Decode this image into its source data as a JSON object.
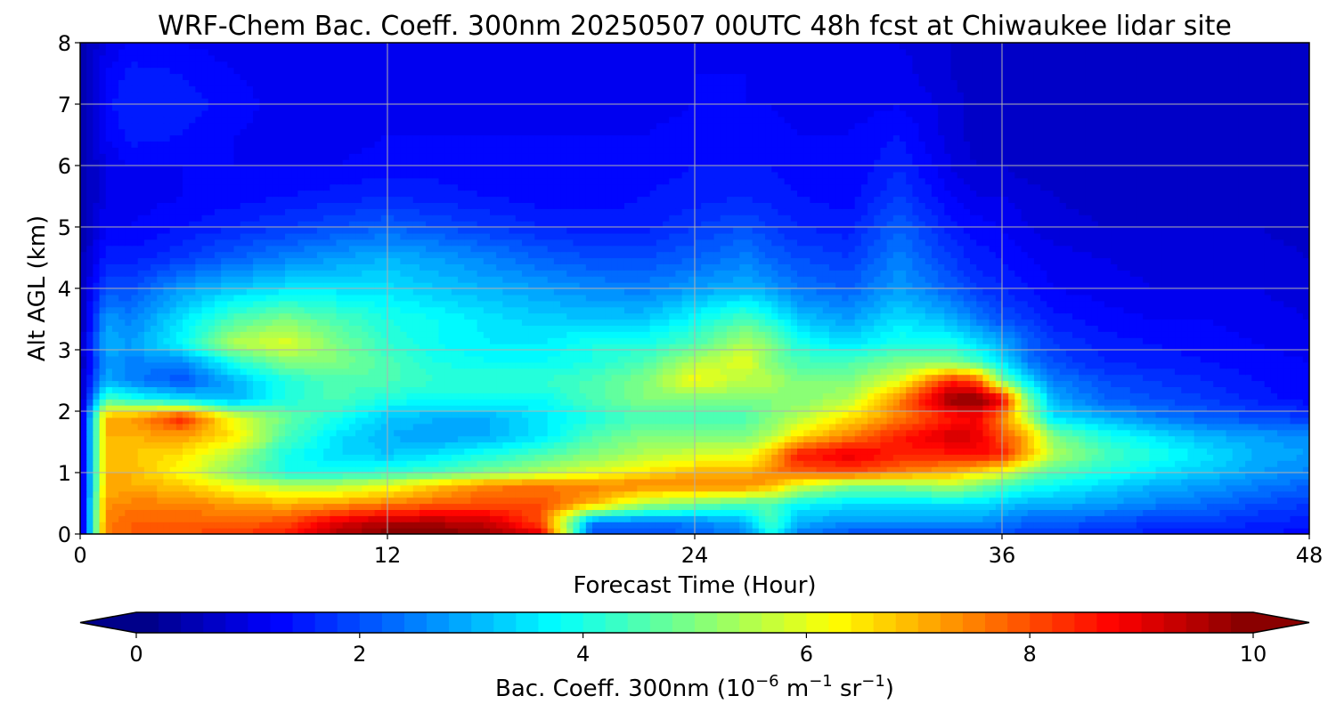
{
  "chart_data": {
    "type": "heatmap",
    "title": "WRF-Chem Bac. Coeff. 300nm  20250507 00UTC 48h fcst at Chiwaukee lidar site",
    "xlabel": "Forecast Time (Hour)",
    "ylabel": "Alt AGL (km)",
    "xlim": [
      0,
      48
    ],
    "ylim": [
      0,
      8
    ],
    "xticks": [
      0,
      12,
      24,
      36,
      48
    ],
    "yticks": [
      0,
      1,
      2,
      3,
      4,
      5,
      6,
      7,
      8
    ],
    "grid": true,
    "colormap": "jet",
    "colorbar": {
      "label_prefix": "Bac. Coeff. 300nm  (10",
      "label_exp1": "−6",
      "label_mid": " m",
      "label_exp2": "−1",
      "label_mid2": " sr",
      "label_exp3": "−1",
      "label_suffix": ")",
      "range": [
        0,
        10
      ],
      "ticks": [
        0,
        2,
        4,
        6,
        8,
        10
      ],
      "extend": "both",
      "orientation": "horizontal",
      "placement": "bottom"
    },
    "x_hours": [
      0,
      1,
      2,
      4,
      6,
      8,
      10,
      12,
      14,
      16,
      18,
      20,
      22,
      24,
      26,
      27,
      28,
      30,
      32,
      34,
      35,
      36,
      37,
      38,
      40,
      42,
      44,
      46,
      48
    ],
    "y_km": [
      0,
      0.2,
      0.5,
      0.8,
      1.0,
      1.3,
      1.6,
      1.9,
      2.2,
      2.5,
      2.8,
      3.1,
      3.5,
      4.0,
      4.5,
      5.0,
      5.5,
      6.0,
      6.5,
      7.0,
      7.5,
      8.0
    ],
    "values": [
      [
        0.5,
        7.5,
        7.8,
        8.0,
        8.2,
        8.5,
        9.5,
        10.0,
        10.0,
        9.8,
        9.0,
        2.0,
        2.0,
        2.2,
        2.5,
        4.0,
        2.5,
        2.0,
        2.0,
        2.0,
        2.0,
        2.0,
        1.8,
        1.8,
        1.6,
        1.5,
        1.5,
        1.4,
        1.3
      ],
      [
        0.5,
        7.5,
        7.8,
        7.8,
        7.8,
        8.0,
        9.0,
        9.5,
        9.5,
        9.2,
        8.0,
        2.5,
        2.4,
        2.5,
        3.0,
        4.5,
        3.0,
        2.7,
        2.7,
        2.8,
        2.7,
        2.5,
        2.2,
        2.2,
        2.0,
        1.8,
        1.8,
        1.6,
        1.5
      ],
      [
        0.5,
        7.3,
        7.5,
        7.5,
        7.2,
        7.0,
        7.2,
        7.5,
        7.8,
        8.0,
        8.0,
        7.0,
        5.5,
        5.0,
        4.5,
        4.5,
        3.8,
        3.5,
        3.5,
        3.5,
        3.5,
        3.3,
        3.0,
        3.0,
        2.8,
        2.5,
        2.3,
        2.0,
        1.8
      ],
      [
        0.5,
        7.0,
        7.0,
        6.8,
        6.0,
        5.5,
        5.5,
        6.0,
        6.8,
        7.5,
        7.6,
        7.5,
        7.5,
        7.5,
        7.5,
        7.0,
        6.0,
        5.0,
        5.0,
        5.5,
        5.0,
        4.5,
        4.0,
        3.8,
        3.4,
        3.0,
        2.8,
        2.5,
        2.2
      ],
      [
        0.5,
        7.0,
        7.0,
        6.2,
        5.0,
        4.0,
        4.0,
        4.2,
        4.5,
        5.0,
        5.5,
        6.0,
        6.5,
        7.0,
        7.0,
        7.5,
        7.8,
        8.0,
        7.5,
        7.0,
        6.5,
        6.0,
        5.0,
        4.5,
        4.0,
        3.5,
        3.2,
        2.8,
        2.5
      ],
      [
        0.5,
        7.0,
        6.8,
        6.5,
        5.5,
        4.0,
        3.4,
        3.2,
        3.5,
        4.0,
        4.5,
        5.0,
        5.5,
        5.8,
        6.0,
        7.0,
        8.5,
        9.0,
        8.5,
        8.5,
        8.7,
        8.5,
        7.0,
        5.5,
        4.5,
        4.0,
        3.5,
        3.0,
        2.8
      ],
      [
        0.5,
        7.0,
        7.0,
        7.2,
        6.5,
        4.5,
        3.5,
        3.0,
        2.8,
        3.0,
        3.5,
        4.5,
        5.0,
        5.0,
        5.0,
        5.5,
        6.5,
        7.5,
        8.5,
        9.2,
        9.0,
        8.0,
        7.0,
        5.0,
        4.0,
        3.5,
        3.0,
        2.8,
        2.6
      ],
      [
        0.5,
        7.0,
        7.2,
        8.5,
        6.0,
        4.8,
        4.0,
        3.2,
        3.0,
        3.0,
        3.5,
        4.0,
        4.5,
        4.5,
        4.5,
        5.0,
        5.5,
        6.5,
        7.5,
        8.5,
        8.8,
        7.5,
        5.5,
        3.5,
        3.0,
        2.5,
        2.2,
        2.0,
        1.8
      ],
      [
        0.5,
        4.5,
        4.0,
        3.5,
        3.0,
        4.0,
        4.5,
        4.0,
        3.8,
        3.8,
        3.8,
        4.5,
        5.0,
        5.0,
        5.0,
        5.0,
        5.0,
        5.5,
        7.5,
        9.8,
        10.0,
        9.0,
        5.0,
        3.0,
        2.2,
        2.0,
        1.8,
        1.5,
        1.3
      ],
      [
        0.5,
        3.0,
        2.5,
        2.0,
        3.0,
        4.0,
        4.5,
        4.5,
        4.2,
        4.2,
        4.2,
        4.5,
        5.0,
        6.2,
        5.5,
        5.5,
        5.0,
        5.0,
        6.0,
        8.5,
        8.0,
        5.0,
        3.5,
        2.5,
        2.0,
        1.8,
        1.6,
        1.4,
        1.2
      ],
      [
        0.5,
        2.8,
        2.5,
        2.5,
        4.0,
        5.0,
        5.0,
        4.5,
        4.0,
        3.8,
        3.8,
        4.0,
        4.5,
        5.5,
        6.0,
        5.0,
        4.5,
        4.5,
        5.0,
        5.0,
        4.5,
        3.5,
        2.5,
        2.0,
        1.6,
        1.5,
        1.4,
        1.3,
        1.2
      ],
      [
        0.5,
        3.0,
        2.8,
        3.8,
        5.5,
        6.0,
        5.0,
        4.2,
        3.8,
        3.6,
        3.6,
        4.0,
        4.0,
        4.5,
        5.5,
        5.0,
        4.0,
        3.5,
        4.0,
        4.0,
        3.5,
        3.0,
        2.2,
        1.8,
        1.5,
        1.4,
        1.3,
        1.2,
        1.1
      ],
      [
        0.5,
        2.8,
        2.5,
        3.5,
        4.5,
        5.0,
        4.5,
        4.0,
        3.8,
        3.5,
        3.3,
        3.2,
        3.2,
        3.8,
        4.5,
        4.0,
        3.2,
        2.8,
        3.5,
        3.0,
        2.5,
        2.0,
        1.8,
        1.5,
        1.3,
        1.2,
        1.2,
        1.1,
        1.0
      ],
      [
        0.5,
        2.0,
        2.0,
        2.8,
        3.2,
        3.5,
        3.5,
        3.5,
        3.2,
        3.0,
        2.8,
        2.6,
        2.5,
        2.8,
        3.0,
        2.8,
        2.4,
        2.2,
        2.8,
        2.2,
        1.8,
        1.6,
        1.4,
        1.2,
        1.1,
        1.0,
        1.0,
        1.0,
        0.9
      ],
      [
        0.5,
        1.5,
        1.5,
        1.8,
        2.2,
        2.5,
        2.8,
        3.0,
        2.8,
        2.5,
        2.2,
        2.0,
        2.0,
        2.2,
        2.5,
        2.2,
        2.0,
        1.8,
        2.5,
        1.8,
        1.5,
        1.4,
        1.2,
        1.1,
        1.0,
        0.9,
        0.9,
        0.9,
        0.8
      ],
      [
        0.4,
        1.2,
        1.2,
        1.4,
        1.6,
        1.8,
        2.0,
        2.2,
        2.0,
        1.8,
        1.6,
        1.5,
        1.5,
        1.8,
        2.0,
        1.8,
        1.6,
        1.5,
        2.2,
        1.5,
        1.3,
        1.2,
        1.0,
        0.9,
        0.8,
        0.8,
        0.8,
        0.8,
        0.7
      ],
      [
        0.4,
        1.0,
        1.1,
        1.2,
        1.3,
        1.4,
        1.5,
        1.6,
        1.5,
        1.4,
        1.3,
        1.3,
        1.4,
        1.5,
        1.6,
        1.5,
        1.4,
        1.3,
        1.8,
        1.2,
        1.0,
        1.0,
        0.9,
        0.8,
        0.7,
        0.7,
        0.7,
        0.7,
        0.6
      ],
      [
        0.4,
        1.0,
        1.2,
        1.2,
        1.2,
        1.2,
        1.2,
        1.3,
        1.3,
        1.2,
        1.2,
        1.2,
        1.3,
        1.4,
        1.4,
        1.4,
        1.3,
        1.2,
        1.6,
        1.0,
        0.8,
        0.8,
        0.7,
        0.7,
        0.6,
        0.6,
        0.6,
        0.6,
        0.6
      ],
      [
        0.4,
        1.2,
        1.5,
        1.4,
        1.2,
        1.1,
        1.1,
        1.2,
        1.2,
        1.2,
        1.2,
        1.2,
        1.2,
        1.3,
        1.3,
        1.3,
        1.2,
        1.2,
        1.4,
        0.9,
        0.7,
        0.7,
        0.6,
        0.6,
        0.6,
        0.6,
        0.6,
        0.6,
        0.6
      ],
      [
        0.4,
        1.3,
        1.6,
        1.5,
        1.3,
        1.1,
        1.0,
        1.1,
        1.1,
        1.1,
        1.1,
        1.1,
        1.1,
        1.2,
        1.2,
        1.2,
        1.1,
        1.1,
        1.2,
        0.9,
        0.7,
        0.7,
        0.6,
        0.6,
        0.6,
        0.6,
        0.6,
        0.6,
        0.6
      ],
      [
        0.4,
        1.2,
        1.5,
        1.4,
        1.2,
        1.1,
        1.0,
        1.0,
        1.0,
        1.1,
        1.1,
        1.1,
        1.1,
        1.2,
        1.2,
        1.1,
        1.1,
        1.0,
        1.1,
        0.8,
        0.7,
        0.7,
        0.6,
        0.6,
        0.6,
        0.6,
        0.6,
        0.6,
        0.6
      ],
      [
        0.4,
        1.0,
        1.2,
        1.2,
        1.1,
        1.0,
        1.0,
        1.0,
        1.0,
        1.0,
        1.0,
        1.0,
        1.0,
        1.1,
        1.1,
        1.0,
        1.0,
        1.0,
        1.0,
        0.8,
        0.7,
        0.7,
        0.6,
        0.6,
        0.6,
        0.6,
        0.6,
        0.6,
        0.6
      ]
    ]
  }
}
